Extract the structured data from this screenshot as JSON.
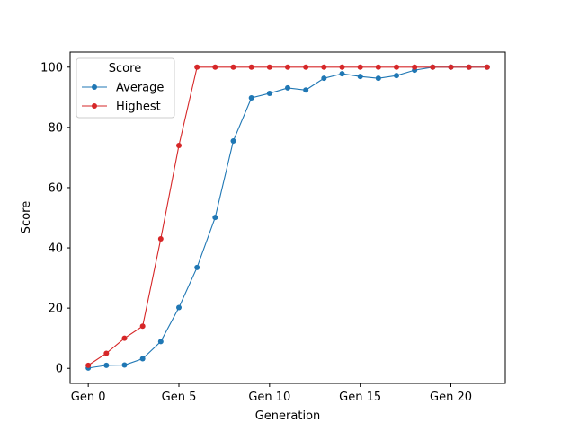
{
  "chart_data": {
    "type": "line",
    "title": "",
    "xlabel": "Generation",
    "ylabel": "Score",
    "x": [
      0,
      1,
      2,
      3,
      4,
      5,
      6,
      7,
      8,
      9,
      10,
      11,
      12,
      13,
      14,
      15,
      16,
      17,
      18,
      19,
      20,
      21,
      22
    ],
    "xlim": [
      -1,
      23
    ],
    "ylim": [
      -5,
      105
    ],
    "xticks": [
      0,
      5,
      10,
      15,
      20
    ],
    "xtick_labels": [
      "Gen 0",
      "Gen 5",
      "Gen 10",
      "Gen 15",
      "Gen 20"
    ],
    "yticks": [
      0,
      20,
      40,
      60,
      80,
      100
    ],
    "ytick_labels": [
      "0",
      "20",
      "40",
      "60",
      "80",
      "100"
    ],
    "grid": false,
    "legend": {
      "title": "Score",
      "placement": "top-left"
    },
    "series": [
      {
        "name": "Average",
        "color": "#1f77b4",
        "values": [
          0.1,
          1,
          1.1,
          3.2,
          8.9,
          20.2,
          33.5,
          50.1,
          75.5,
          89.8,
          91.3,
          93.1,
          92.4,
          96.3,
          97.8,
          96.9,
          96.3,
          97.2,
          99,
          100,
          100,
          100,
          100
        ]
      },
      {
        "name": "Highest",
        "color": "#d62728",
        "values": [
          1,
          5,
          10,
          14,
          43,
          74,
          100,
          100,
          100,
          100,
          100,
          100,
          100,
          100,
          100,
          100,
          100,
          100,
          100,
          100,
          100,
          100,
          100
        ]
      }
    ]
  }
}
